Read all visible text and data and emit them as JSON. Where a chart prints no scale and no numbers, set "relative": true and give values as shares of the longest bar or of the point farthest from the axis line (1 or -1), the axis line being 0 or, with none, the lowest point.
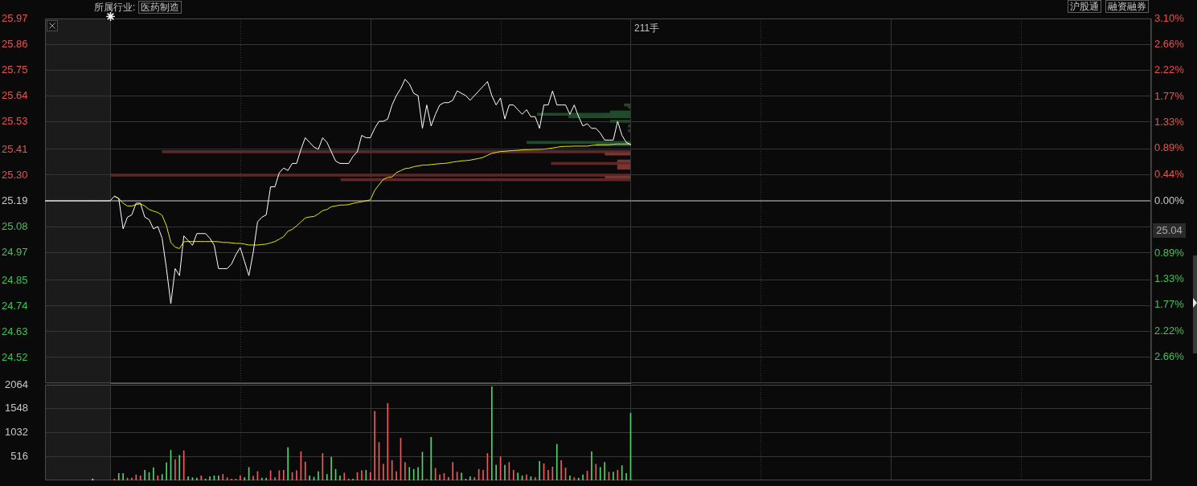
{
  "chart_data": [
    {
      "type": "line",
      "categories": [
        null,
        null,
        null,
        null,
        null,
        null,
        null,
        null,
        null,
        null,
        null,
        null,
        null,
        null,
        null,
        null,
        null,
        null,
        null,
        null,
        null,
        null,
        null,
        null,
        null,
        null,
        null,
        null,
        null,
        null,
        null,
        null,
        null,
        null,
        null,
        null,
        null,
        null,
        null,
        null,
        null,
        null,
        null,
        null,
        null,
        null,
        null,
        null,
        null,
        null,
        null,
        null,
        null,
        null,
        null,
        null,
        null,
        null,
        null,
        null,
        null,
        null,
        null,
        null,
        null,
        null,
        null,
        null,
        null,
        null,
        null,
        null,
        null,
        null,
        null,
        null,
        null,
        null,
        null,
        null,
        null,
        null,
        null,
        null,
        null,
        null,
        null,
        null,
        null,
        null,
        null,
        null,
        null,
        null,
        null,
        null,
        null,
        null,
        null,
        null,
        null,
        null,
        null,
        null,
        null,
        null,
        null,
        null,
        null,
        null,
        null,
        null,
        null,
        null,
        null,
        null,
        null,
        null,
        null,
        null,
        null,
        null,
        null,
        null,
        null,
        null,
        null,
        null,
        null,
        null,
        null,
        null,
        null,
        null,
        null,
        null,
        null,
        null,
        null,
        null,
        null,
        null,
        null,
        null,
        null,
        null,
        null,
        null,
        null,
        null,
        null,
        null,
        null,
        null,
        null,
        null,
        null,
        null,
        null,
        null,
        null,
        null,
        null,
        null,
        null,
        null,
        null,
        null,
        null,
        null,
        null,
        null,
        null,
        null,
        null,
        null,
        null,
        null,
        null,
        null,
        null,
        null,
        null,
        null,
        null,
        null,
        null,
        null,
        null,
        null,
        null,
        null,
        null,
        null,
        null,
        null,
        null,
        null,
        null,
        null,
        null,
        null,
        null,
        null,
        null,
        null,
        null,
        null,
        null,
        null,
        null,
        null,
        null,
        null,
        null,
        null,
        null,
        null,
        null,
        null,
        null,
        null,
        null,
        null,
        null,
        null,
        null,
        null,
        null,
        null,
        null,
        null,
        null,
        null,
        null,
        null,
        null,
        null,
        null,
        null,
        null,
        null,
        null,
        null,
        null,
        null,
        null,
        null,
        null,
        null,
        null,
        null,
        null,
        null,
        null,
        null
      ],
      "series": [
        {
          "color": "#ffffff",
          "values": [
            25.19,
            25.19,
            25.19,
            25.19,
            25.19,
            25.19,
            25.19,
            25.19,
            25.19,
            25.19,
            25.19,
            25.19,
            25.19,
            25.19,
            25.19,
            25.19,
            25.21,
            25.2,
            25.07,
            25.12,
            25.13,
            25.18,
            25.18,
            25.12,
            25.11,
            25.07,
            25.08,
            25.03,
            24.9,
            24.75,
            24.9,
            24.87,
            25.04,
            25.02,
            25.0,
            25.05,
            25.05,
            25.05,
            25.03,
            25.0,
            24.9,
            24.9,
            24.9,
            24.92,
            24.96,
            24.99,
            24.93,
            24.87,
            24.97,
            25.1,
            25.12,
            25.13,
            25.25,
            25.25,
            25.31,
            25.33,
            25.32,
            25.35,
            25.35,
            25.41,
            25.46,
            25.44,
            25.42,
            25.41,
            25.46,
            25.44,
            25.4,
            25.36,
            25.35,
            25.35,
            25.35,
            25.38,
            25.4,
            25.47,
            25.46,
            25.46,
            25.5,
            25.53,
            25.53,
            25.54,
            25.6,
            25.64,
            25.67,
            25.71,
            25.69,
            25.65,
            25.64,
            25.5,
            25.6,
            25.51,
            25.56,
            25.6,
            25.61,
            25.61,
            25.62,
            25.66,
            25.65,
            25.64,
            25.62,
            25.64,
            25.66,
            25.68,
            25.7,
            25.64,
            25.6,
            25.63,
            25.54,
            25.6,
            25.6,
            25.58,
            25.56,
            25.58,
            25.55,
            25.55,
            25.5,
            25.6,
            25.6,
            25.66,
            25.6,
            25.6,
            25.6,
            25.56,
            25.6,
            25.55,
            25.51,
            25.52,
            25.5,
            25.5,
            25.48,
            25.45,
            25.45,
            25.45,
            25.53,
            25.47,
            25.44,
            25.43,
            null,
            null,
            null,
            null,
            null,
            null,
            null,
            null,
            null,
            null,
            null,
            null,
            null,
            null,
            null,
            null,
            null,
            null,
            null,
            null,
            null,
            null,
            null,
            null,
            null,
            null,
            null,
            null,
            null,
            null,
            null,
            null,
            null,
            null,
            null,
            null,
            null,
            null,
            null,
            null,
            null,
            null,
            null,
            null,
            null,
            null,
            null,
            null,
            null,
            null,
            null,
            null,
            null,
            null,
            null,
            null,
            null,
            null,
            null,
            null,
            null,
            null,
            null,
            null,
            null,
            null,
            null,
            null,
            null,
            null,
            null,
            null,
            null,
            null,
            null,
            null,
            null,
            null,
            null,
            null,
            null,
            null,
            null,
            null,
            null,
            null,
            null,
            null,
            null,
            null,
            null,
            null,
            null,
            null,
            null,
            null,
            null,
            null,
            null,
            null,
            null,
            null,
            null,
            null,
            null,
            null,
            null,
            null,
            null,
            null,
            null,
            null,
            null,
            null,
            null,
            null,
            null,
            null,
            null,
            null
          ]
        },
        {
          "color": "#e8e800",
          "values": [
            null,
            null,
            null,
            null,
            null,
            null,
            null,
            null,
            null,
            null,
            null,
            null,
            null,
            null,
            null,
            null,
            25.21,
            25.2,
            25.18,
            25.168,
            25.168,
            25.174,
            25.177,
            25.168,
            25.153,
            25.146,
            25.14,
            25.128,
            25.083,
            25.012,
            24.992,
            24.986,
            25.015,
            25.016,
            25.016,
            25.016,
            25.016,
            25.016,
            25.016,
            25.016,
            25.015,
            25.012,
            25.012,
            25.01,
            25.008,
            25.008,
            25.005,
            25.001,
            25.001,
            25.001,
            25.003,
            25.005,
            25.01,
            25.016,
            25.026,
            25.037,
            25.06,
            25.068,
            25.083,
            25.1,
            25.117,
            25.121,
            25.123,
            25.134,
            25.148,
            25.153,
            25.165,
            25.168,
            25.172,
            25.172,
            25.174,
            25.179,
            25.183,
            25.186,
            25.19,
            25.194,
            25.235,
            25.259,
            25.282,
            25.29,
            25.292,
            25.311,
            25.319,
            25.328,
            25.33,
            25.336,
            25.339,
            25.343,
            25.343,
            25.345,
            25.347,
            25.349,
            25.35,
            25.352,
            25.356,
            25.358,
            25.361,
            25.362,
            25.364,
            25.368,
            25.371,
            25.376,
            25.385,
            25.393,
            25.397,
            25.401,
            25.402,
            25.404,
            25.405,
            25.406,
            25.408,
            25.409,
            25.409,
            25.41,
            25.41,
            25.411,
            25.413,
            25.416,
            25.419,
            25.422,
            25.423,
            25.423,
            25.424,
            25.424,
            25.424,
            25.424,
            25.427,
            25.429,
            25.43,
            25.43,
            25.43,
            25.432,
            25.433,
            25.433,
            25.433,
            25.433,
            null,
            null,
            null,
            null,
            null,
            null,
            null,
            null,
            null,
            null,
            null,
            null,
            null,
            null,
            null,
            null,
            null,
            null,
            null,
            null,
            null,
            null,
            null,
            null,
            null,
            null,
            null,
            null,
            null,
            null,
            null,
            null,
            null,
            null,
            null,
            null,
            null,
            null,
            null,
            null,
            null,
            null,
            null,
            null,
            null,
            null,
            null,
            null,
            null,
            null,
            null,
            null,
            null,
            null,
            null,
            null,
            null,
            null,
            null,
            null,
            null,
            null,
            null,
            null,
            null,
            null,
            null,
            null,
            null,
            null,
            null,
            null,
            null,
            null,
            null,
            null,
            null,
            null,
            null,
            null,
            null,
            null,
            null,
            null,
            null,
            null,
            null,
            null,
            null,
            null,
            null,
            null,
            null,
            null,
            null,
            null,
            null,
            null,
            null,
            null,
            null,
            null,
            null,
            null,
            null,
            null,
            null,
            null,
            null,
            null,
            null,
            null,
            null,
            null,
            null,
            null,
            null,
            null,
            null,
            null
          ]
        }
      ],
      "ylim": [
        24.41,
        25.97
      ],
      "yticks": [
        25.97,
        25.86,
        25.75,
        25.64,
        25.53,
        25.41,
        {
          "value": 25.3,
          "label": "25.30"
        },
        25.19,
        25.08,
        24.97,
        24.85,
        24.74,
        24.63,
        24.52
      ],
      "y2lim": [
        -3.1,
        3.1
      ],
      "y2ticks": [
        {
          "value": 3.1,
          "label": "3.10%"
        },
        {
          "value": 2.66,
          "label": "2.66%"
        },
        {
          "value": 2.22,
          "label": "2.22%"
        },
        {
          "value": 1.77,
          "label": "1.77%"
        },
        {
          "value": 1.33,
          "label": "1.33%"
        },
        {
          "value": 0.89,
          "label": "0.89%"
        },
        {
          "value": 0.44,
          "label": "0.44%"
        },
        {
          "value": 0,
          "label": "0.00%"
        },
        {
          "value": -0.89,
          "label": "0.89%"
        },
        {
          "value": -1.33,
          "label": "1.33%"
        },
        {
          "value": -1.77,
          "label": "1.77%"
        },
        {
          "value": -2.22,
          "label": "2.22%"
        },
        {
          "value": -2.66,
          "label": "2.66%"
        }
      ],
      "ref_lines": [
        {
          "axis": "y",
          "value": 25.19,
          "color": "#6e6e6e"
        }
      ],
      "grid": true,
      "annotations": [
        "所属行业:",
        "医药制造",
        "沪股通",
        "融资融券",
        "211手",
        "25.04"
      ]
    },
    {
      "type": "bar",
      "orientation": "horizontal",
      "relative": true,
      "x": [
        25.6,
        25.59,
        25.57,
        25.56,
        25.55,
        25.53,
        25.51,
        25.49,
        25.44,
        25.43,
        25.4,
        25.39,
        25.36,
        25.35,
        25.34,
        25.33,
        25.3,
        25.29,
        25.28
      ],
      "values": [
        0.013,
        0.005,
        0.04,
        0.18,
        0.12,
        0.04,
        0.005,
        0.005,
        0.2,
        0.067,
        0.9,
        0.05,
        0.026,
        0.153,
        0.026,
        0.026,
        1,
        0.05,
        0.557
      ],
      "colors": [
        "#214a2c",
        "#214a2c",
        "#214a2c",
        "#214a2c",
        "#214a2c",
        "#214a2c",
        "#214a2c",
        "#214a2c",
        "#214a2c",
        "#214a2c",
        "#5e2828",
        "#7a3434",
        "#7a3434",
        "#5e2828",
        "#7a3434",
        "#7a3434",
        "#5e2828",
        "#7a3434",
        "#5e2828"
      ],
      "ylim": [
        24.41,
        25.97
      ],
      "tick_labels": false
    },
    {
      "type": "bar",
      "categories": [
        null,
        null,
        null,
        null,
        null,
        null,
        null,
        null,
        null,
        null,
        null,
        null,
        null,
        null,
        null,
        null,
        null,
        null,
        null,
        null,
        null,
        null,
        null,
        null,
        null,
        null,
        null,
        null,
        null,
        null,
        null,
        null,
        null,
        null,
        null,
        null,
        null,
        null,
        null,
        null,
        null,
        null,
        null,
        null,
        null,
        null,
        null,
        null,
        null,
        null,
        null,
        null,
        null,
        null,
        null,
        null,
        null,
        null,
        null,
        null,
        null,
        null,
        null,
        null,
        null,
        null,
        null,
        null,
        null,
        null,
        null,
        null,
        null,
        null,
        null,
        null,
        null,
        null,
        null,
        null,
        null,
        null,
        null,
        null,
        null,
        null,
        null,
        null,
        null,
        null,
        null,
        null,
        null,
        null,
        null,
        null,
        null,
        null,
        null,
        null,
        null,
        null,
        null,
        null,
        null,
        null,
        null,
        null,
        null,
        null,
        null,
        null,
        null,
        null,
        null,
        null,
        null,
        null,
        null,
        null,
        null,
        null,
        null,
        null,
        null,
        null,
        null,
        null,
        null,
        null,
        null,
        null,
        null,
        null,
        null,
        null,
        null,
        null,
        null,
        null,
        null,
        null,
        null,
        null,
        null,
        null,
        null,
        null,
        null,
        null,
        null,
        null,
        null,
        null,
        null,
        null,
        null,
        null,
        null,
        null,
        null,
        null,
        null,
        null,
        null,
        null,
        null,
        null,
        null,
        null,
        null,
        null,
        null,
        null,
        null,
        null,
        null,
        null,
        null,
        null,
        null,
        null,
        null,
        null,
        null,
        null,
        null,
        null,
        null,
        null,
        null,
        null,
        null,
        null,
        null,
        null,
        null,
        null,
        null,
        null,
        null,
        null,
        null,
        null,
        null,
        null,
        null,
        null,
        null,
        null,
        null,
        null,
        null,
        null,
        null,
        null,
        null,
        null,
        null,
        null,
        null,
        null,
        null,
        null,
        null,
        null,
        null,
        null,
        null,
        null,
        null,
        null,
        null,
        null,
        null,
        null,
        null,
        null,
        null,
        null,
        null,
        null,
        null,
        null,
        null,
        null,
        null,
        null,
        null,
        null,
        null,
        null,
        null,
        null,
        null,
        null
      ],
      "values": [
        null,
        null,
        null,
        null,
        null,
        null,
        null,
        null,
        null,
        null,
        null,
        30,
        null,
        null,
        null,
        null,
        30,
        150,
        150,
        50,
        50,
        120,
        100,
        220,
        170,
        270,
        100,
        130,
        380,
        650,
        450,
        540,
        640,
        80,
        60,
        50,
        100,
        30,
        80,
        100,
        100,
        130,
        60,
        30,
        30,
        100,
        60,
        280,
        90,
        190,
        50,
        50,
        210,
        60,
        210,
        220,
        710,
        170,
        210,
        620,
        400,
        100,
        70,
        190,
        580,
        130,
        500,
        240,
        100,
        160,
        30,
        30,
        170,
        210,
        220,
        170,
        1490,
        820,
        350,
        1660,
        430,
        190,
        910,
        390,
        280,
        240,
        280,
        610,
        20,
        930,
        260,
        120,
        150,
        70,
        390,
        180,
        160,
        30,
        80,
        60,
        240,
        220,
        580,
        2020,
        330,
        510,
        330,
        390,
        220,
        160,
        100,
        120,
        80,
        60,
        410,
        360,
        220,
        290,
        780,
        430,
        270,
        100,
        60,
        50,
        120,
        200,
        620,
        350,
        280,
        390,
        180,
        180,
        220,
        320,
        150,
        1450,
        null,
        null,
        null,
        null,
        null,
        null,
        null,
        null,
        null,
        null,
        null,
        null,
        null,
        null,
        null,
        null,
        null,
        null,
        null,
        null,
        null,
        null,
        null,
        null,
        null,
        null,
        null,
        null,
        null,
        null,
        null,
        null,
        null,
        null,
        null,
        null,
        null,
        null,
        null,
        null,
        null,
        null,
        null,
        null,
        null,
        null,
        null,
        null,
        null,
        null,
        null,
        null,
        null,
        null,
        null,
        null,
        null,
        null,
        null,
        null,
        null,
        null,
        null,
        null,
        null,
        null,
        null,
        null,
        null,
        null,
        null,
        null,
        null,
        null,
        null,
        null,
        null,
        null,
        null,
        null,
        null,
        null,
        null,
        null,
        null,
        null,
        null,
        null,
        null,
        null,
        null,
        null,
        null,
        null,
        null,
        null,
        null,
        null,
        null,
        null,
        null,
        null,
        null,
        null,
        null,
        null,
        null,
        null,
        null,
        null,
        null,
        null,
        null,
        null,
        null,
        null,
        null,
        null,
        null,
        null
      ],
      "colors": [
        null,
        null,
        null,
        null,
        null,
        null,
        null,
        null,
        null,
        null,
        null,
        "#d0d0d0",
        null,
        null,
        null,
        null,
        "#f05a5a",
        "#4fd36b",
        "#4fd36b",
        "#f05a5a",
        "#f05a5a",
        "#f05a5a",
        "#f05a5a",
        "#4fd36b",
        "#4fd36b",
        "#4fd36b",
        "#f05a5a",
        "#4fd36b",
        "#4fd36b",
        "#4fd36b",
        "#f05a5a",
        "#4fd36b",
        "#f05a5a",
        "#4fd36b",
        "#4fd36b",
        "#4fd36b",
        "#f05a5a",
        "#4fd36b",
        "#4fd36b",
        "#4fd36b",
        "#4fd36b",
        "#f05a5a",
        "#f05a5a",
        "#f05a5a",
        "#f05a5a",
        "#f05a5a",
        "#4fd36b",
        "#4fd36b",
        "#f05a5a",
        "#f05a5a",
        "#4fd36b",
        "#4fd36b",
        "#f05a5a",
        "#f05a5a",
        "#f05a5a",
        "#f05a5a",
        "#4fd36b",
        "#f05a5a",
        "#f05a5a",
        "#f05a5a",
        "#f05a5a",
        "#4fd36b",
        "#4fd36b",
        "#4fd36b",
        "#f05a5a",
        "#4fd36b",
        "#4fd36b",
        "#4fd36b",
        "#4fd36b",
        "#f05a5a",
        "#f05a5a",
        "#4fd36b",
        "#f05a5a",
        "#f05a5a",
        "#4fd36b",
        "#f05a5a",
        "#f05a5a",
        "#f05a5a",
        "#f05a5a",
        "#f05a5a",
        "#f05a5a",
        "#f05a5a",
        "#f05a5a",
        "#f05a5a",
        "#4fd36b",
        "#4fd36b",
        "#4fd36b",
        "#4fd36b",
        "#f05a5a",
        "#4fd36b",
        "#f05a5a",
        "#f05a5a",
        "#f05a5a",
        "#f05a5a",
        "#f05a5a",
        "#f05a5a",
        "#4fd36b",
        "#4fd36b",
        "#4fd36b",
        "#f05a5a",
        "#f05a5a",
        "#f05a5a",
        "#f05a5a",
        "#4fd36b",
        "#4fd36b",
        "#f05a5a",
        "#4fd36b",
        "#f05a5a",
        "#f05a5a",
        "#4fd36b",
        "#4fd36b",
        "#f05a5a",
        "#4fd36b",
        "#f05a5a",
        "#4fd36b",
        "#f05a5a",
        "#f05a5a",
        "#f05a5a",
        "#4fd36b",
        "#f05a5a",
        "#f05a5a",
        "#4fd36b",
        "#f05a5a",
        "#4fd36b",
        "#4fd36b",
        "#f05a5a",
        "#4fd36b",
        "#f05a5a",
        "#4fd36b",
        "#4fd36b",
        "#f05a5a",
        "#4fd36b",
        "#f05a5a",
        "#4fd36b",
        "#4fd36b",
        "#4fd36b",
        null,
        null,
        null,
        null,
        null,
        null,
        null,
        null,
        null,
        null,
        null,
        null,
        null,
        null,
        null,
        null,
        null,
        null,
        null,
        null,
        null,
        null,
        null,
        null,
        null,
        null,
        null,
        null,
        null,
        null,
        null,
        null,
        null,
        null,
        null,
        null,
        null,
        null,
        null,
        null,
        null,
        null,
        null,
        null,
        null,
        null,
        null,
        null,
        null,
        null,
        null,
        null,
        null,
        null,
        null,
        null,
        null,
        null,
        null,
        null,
        null,
        null,
        null,
        null,
        null,
        null,
        null,
        null,
        null,
        null,
        null,
        null,
        null,
        null,
        null,
        null,
        null,
        null,
        null,
        null,
        null,
        null,
        null,
        null,
        null,
        null,
        null,
        null,
        null,
        null,
        null,
        null,
        null,
        null,
        null,
        null,
        null,
        null,
        null,
        null,
        null,
        null,
        null,
        null,
        null,
        null,
        null,
        null,
        null,
        null,
        null,
        null,
        null,
        null,
        null,
        null,
        null,
        null,
        null,
        null
      ],
      "ylim": [
        0,
        2064
      ],
      "yticks": [
        516,
        1032,
        1548,
        2064
      ],
      "grid": true
    }
  ]
}
